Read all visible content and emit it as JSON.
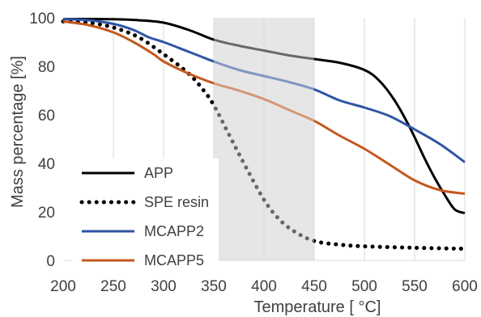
{
  "chart_data": {
    "type": "line",
    "title": "",
    "xlabel": "Temperature [ °C]",
    "ylabel": "Mass percentage  [%]",
    "xlim": [
      200,
      600
    ],
    "ylim": [
      0,
      100
    ],
    "x_ticks": [
      200,
      250,
      300,
      350,
      400,
      450,
      500,
      550,
      600
    ],
    "y_ticks": [
      0,
      20,
      40,
      60,
      80,
      100
    ],
    "grid": "vertical",
    "legend_position": "bottom-left",
    "highlight_band": {
      "x_start": 350,
      "x_end": 450,
      "color": "#e6e6e6",
      "in_band_opacity": 0.55
    },
    "series": [
      {
        "name": "APP",
        "color": "#000000",
        "style": "solid",
        "x": [
          200,
          225,
          250,
          275,
          300,
          325,
          350,
          375,
          400,
          425,
          450,
          475,
          500,
          515,
          530,
          545,
          560,
          570,
          580,
          590,
          600
        ],
        "y": [
          99.5,
          99.5,
          99.4,
          99.0,
          98.0,
          95.0,
          91.0,
          88.5,
          86.5,
          84.5,
          83.0,
          81.5,
          78.5,
          74.0,
          66.0,
          55.0,
          42.0,
          34.0,
          27.0,
          21.0,
          19.5
        ]
      },
      {
        "name": "SPE resin",
        "color": "#000000",
        "style": "dotted",
        "x": [
          200,
          225,
          250,
          275,
          300,
          325,
          340,
          350,
          365,
          380,
          400,
          415,
          430,
          450,
          475,
          500,
          550,
          600
        ],
        "y": [
          98.5,
          98.0,
          96.0,
          92.0,
          85.0,
          77.0,
          70.0,
          64.0,
          52.0,
          40.0,
          25.0,
          17.0,
          12.0,
          8.0,
          6.5,
          5.8,
          5.2,
          4.8
        ]
      },
      {
        "name": "MCAPP2",
        "color": "#2f55a4",
        "style": "solid",
        "x": [
          200,
          225,
          250,
          270,
          285,
          300,
          325,
          350,
          375,
          400,
          425,
          450,
          475,
          500,
          525,
          550,
          575,
          600
        ],
        "y": [
          99.5,
          99.0,
          97.5,
          95.0,
          92.0,
          90.0,
          86.0,
          82.0,
          78.5,
          76.0,
          73.5,
          70.5,
          66.0,
          63.0,
          59.5,
          54.0,
          48.0,
          40.5
        ]
      },
      {
        "name": "MCAPP5",
        "color": "#c5581d",
        "style": "solid",
        "x": [
          200,
          225,
          250,
          270,
          290,
          300,
          325,
          350,
          375,
          400,
          425,
          450,
          475,
          500,
          525,
          550,
          575,
          600
        ],
        "y": [
          98.5,
          97.0,
          94.0,
          90.0,
          85.0,
          82.0,
          77.0,
          73.0,
          70.0,
          66.5,
          62.0,
          57.5,
          51.5,
          46.0,
          39.5,
          33.0,
          29.0,
          27.5
        ]
      }
    ]
  }
}
